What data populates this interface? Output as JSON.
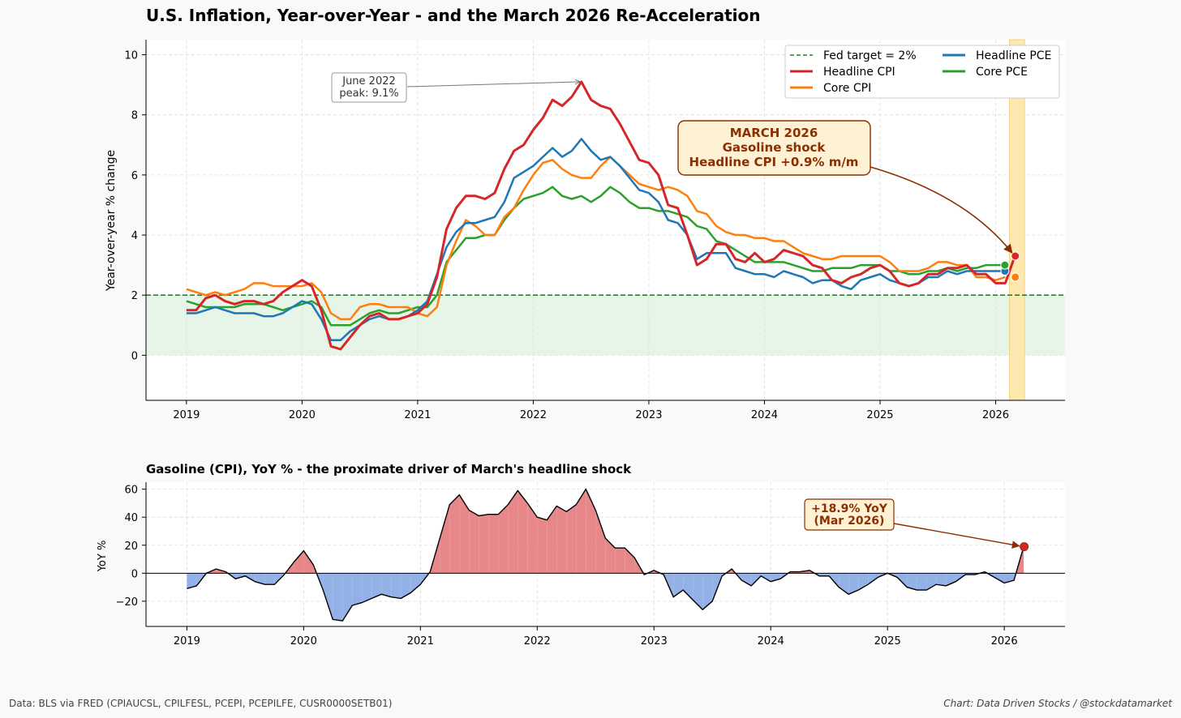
{
  "header": {
    "title": "U.S. Inflation, Year-over-Year - and the March 2026 Re-Acceleration"
  },
  "footer": {
    "source": "Data: BLS via FRED (CPIAUCSL, CPILFESL, PCEPI, PCEPILFE, CUSR0000SETB01)",
    "credit": "Chart: Data Driven Stocks / @stockdatamarket"
  },
  "colors": {
    "headline_cpi": "#d62728",
    "core_cpi": "#ff7f0e",
    "headline_pce": "#1f77b4",
    "core_pce": "#2ca02c",
    "fed_target": "#2e7d32",
    "target_band": "#e6f5e8",
    "highlight_band": "#fde9b0",
    "annotation_text": "#8b2e00",
    "annotation_box": "#fff2d4",
    "gas_positive": "#e8878a",
    "gas_negative": "#93b1e6"
  },
  "chart_data": [
    {
      "type": "line",
      "title": "",
      "ylabel": "Year-over-year % change",
      "xlabel": "",
      "xlim": [
        2018.65,
        2026.6
      ],
      "ylim": [
        -1.5,
        10.5
      ],
      "x_ticks": [
        2019,
        2020,
        2021,
        2022,
        2023,
        2024,
        2025,
        2026
      ],
      "y_ticks": [
        0,
        2,
        4,
        6,
        8,
        10
      ],
      "grid": true,
      "target_line": {
        "value": 2,
        "label": "Fed target = 2%"
      },
      "target_band": [
        0,
        2
      ],
      "highlight_span": [
        2026.12,
        2026.25
      ],
      "legend": {
        "position": "top-right",
        "entries": [
          "Fed target = 2%",
          "Headline CPI",
          "Core CPI",
          "Headline PCE",
          "Core PCE"
        ]
      },
      "series": [
        {
          "name": "Headline CPI",
          "key": "headline_cpi",
          "start": 2019.0,
          "values": [
            1.5,
            1.5,
            1.9,
            2.0,
            1.8,
            1.7,
            1.8,
            1.8,
            1.7,
            1.8,
            2.1,
            2.3,
            2.5,
            2.3,
            1.5,
            0.3,
            0.2,
            0.6,
            1.0,
            1.3,
            1.4,
            1.2,
            1.2,
            1.3,
            1.4,
            1.7,
            2.6,
            4.2,
            4.9,
            5.3,
            5.3,
            5.2,
            5.4,
            6.2,
            6.8,
            7.0,
            7.5,
            7.9,
            8.5,
            8.3,
            8.6,
            9.1,
            8.5,
            8.3,
            8.2,
            7.7,
            7.1,
            6.5,
            6.4,
            6.0,
            5.0,
            4.9,
            4.0,
            3.0,
            3.2,
            3.7,
            3.7,
            3.2,
            3.1,
            3.4,
            3.1,
            3.2,
            3.5,
            3.4,
            3.3,
            3.0,
            2.9,
            2.5,
            2.4,
            2.6,
            2.7,
            2.9,
            3.0,
            2.8,
            2.4,
            2.3,
            2.4,
            2.7,
            2.7,
            2.9,
            2.9,
            3.0,
            2.7,
            2.7,
            2.4,
            2.4,
            3.3
          ]
        },
        {
          "name": "Core CPI",
          "key": "core_cpi",
          "start": 2019.0,
          "values": [
            2.2,
            2.1,
            2.0,
            2.1,
            2.0,
            2.1,
            2.2,
            2.4,
            2.4,
            2.3,
            2.3,
            2.3,
            2.3,
            2.4,
            2.1,
            1.4,
            1.2,
            1.2,
            1.6,
            1.7,
            1.7,
            1.6,
            1.6,
            1.6,
            1.4,
            1.3,
            1.6,
            3.0,
            3.8,
            4.5,
            4.3,
            4.0,
            4.0,
            4.6,
            4.9,
            5.5,
            6.0,
            6.4,
            6.5,
            6.2,
            6.0,
            5.9,
            5.9,
            6.3,
            6.6,
            6.3,
            6.0,
            5.7,
            5.6,
            5.5,
            5.6,
            5.5,
            5.3,
            4.8,
            4.7,
            4.3,
            4.1,
            4.0,
            4.0,
            3.9,
            3.9,
            3.8,
            3.8,
            3.6,
            3.4,
            3.3,
            3.2,
            3.2,
            3.3,
            3.3,
            3.3,
            3.3,
            3.3,
            3.1,
            2.8,
            2.8,
            2.8,
            2.9,
            3.1,
            3.1,
            3.0,
            3.0,
            2.6,
            2.6,
            2.5,
            2.6
          ]
        },
        {
          "name": "Headline PCE",
          "key": "headline_pce",
          "start": 2019.0,
          "values": [
            1.4,
            1.4,
            1.5,
            1.6,
            1.5,
            1.4,
            1.4,
            1.4,
            1.3,
            1.3,
            1.4,
            1.6,
            1.8,
            1.7,
            1.2,
            0.5,
            0.5,
            0.8,
            1.0,
            1.2,
            1.3,
            1.2,
            1.2,
            1.3,
            1.5,
            1.8,
            2.7,
            3.6,
            4.1,
            4.4,
            4.4,
            4.5,
            4.6,
            5.1,
            5.9,
            6.1,
            6.3,
            6.6,
            6.9,
            6.6,
            6.8,
            7.2,
            6.8,
            6.5,
            6.6,
            6.3,
            5.9,
            5.5,
            5.4,
            5.1,
            4.5,
            4.4,
            4.0,
            3.2,
            3.4,
            3.4,
            3.4,
            2.9,
            2.8,
            2.7,
            2.7,
            2.6,
            2.8,
            2.7,
            2.6,
            2.4,
            2.5,
            2.5,
            2.3,
            2.2,
            2.5,
            2.6,
            2.7,
            2.5,
            2.4,
            2.3,
            2.4,
            2.6,
            2.6,
            2.8,
            2.7,
            2.8,
            2.8,
            2.8,
            2.8,
            2.8
          ]
        },
        {
          "name": "Core PCE",
          "key": "core_pce",
          "start": 2019.0,
          "values": [
            1.8,
            1.7,
            1.6,
            1.6,
            1.6,
            1.6,
            1.7,
            1.7,
            1.7,
            1.6,
            1.5,
            1.6,
            1.7,
            1.8,
            1.6,
            1.0,
            1.0,
            1.0,
            1.2,
            1.4,
            1.5,
            1.4,
            1.4,
            1.5,
            1.6,
            1.6,
            2.0,
            3.1,
            3.5,
            3.9,
            3.9,
            4.0,
            4.0,
            4.5,
            4.9,
            5.2,
            5.3,
            5.4,
            5.6,
            5.3,
            5.2,
            5.3,
            5.1,
            5.3,
            5.6,
            5.4,
            5.1,
            4.9,
            4.9,
            4.8,
            4.8,
            4.7,
            4.6,
            4.3,
            4.2,
            3.8,
            3.7,
            3.5,
            3.3,
            3.1,
            3.1,
            3.1,
            3.1,
            3.0,
            2.9,
            2.8,
            2.8,
            2.9,
            2.9,
            2.9,
            3.0,
            3.0,
            3.0,
            2.8,
            2.8,
            2.7,
            2.7,
            2.8,
            2.8,
            2.9,
            2.8,
            2.9,
            2.9,
            3.0,
            3.0,
            3.0
          ]
        }
      ],
      "end_markers": [
        {
          "series": "Headline CPI",
          "x": 2026.17,
          "y": 3.3
        },
        {
          "series": "Core CPI",
          "x": 2026.17,
          "y": 2.6
        },
        {
          "series": "Headline PCE",
          "x": 2026.08,
          "y": 2.8
        },
        {
          "series": "Core PCE",
          "x": 2026.08,
          "y": 3.0
        }
      ],
      "annotations": {
        "peak": {
          "text": [
            "June 2022",
            "peak: 9.1%"
          ],
          "x": 2022.42,
          "y": 9.1
        },
        "shock": {
          "text": [
            "MARCH 2026",
            "Gasoline shock",
            "Headline CPI +0.9% m/m"
          ],
          "x": 2026.17,
          "y": 3.3
        }
      }
    },
    {
      "type": "area",
      "title": "Gasoline (CPI), YoY % - the proximate driver of March's headline shock",
      "ylabel": "YoY %",
      "xlabel": "",
      "xlim": [
        2018.65,
        2026.52
      ],
      "ylim": [
        -38,
        65
      ],
      "x_ticks": [
        2019,
        2020,
        2021,
        2022,
        2023,
        2024,
        2025,
        2026
      ],
      "y_ticks": [
        -20,
        0,
        20,
        40,
        60
      ],
      "grid": true,
      "series": [
        {
          "name": "Gasoline CPI YoY",
          "start": 2019.0,
          "values": [
            -11,
            -9,
            0,
            3,
            1,
            -4,
            -2,
            -6,
            -8,
            -8,
            -1,
            8,
            16,
            6,
            -12,
            -33,
            -34,
            -23,
            -21,
            -18,
            -15,
            -17,
            -18,
            -14,
            -8,
            1,
            25,
            49,
            56,
            45,
            41,
            42,
            42,
            49,
            59,
            50,
            40,
            38,
            48,
            44,
            49,
            60,
            45,
            25,
            18,
            18,
            11,
            -1,
            2,
            -1,
            -17,
            -12,
            -19,
            -26,
            -20,
            -2,
            3,
            -5,
            -9,
            -2,
            -6,
            -4,
            1,
            1,
            2,
            -2,
            -2,
            -10,
            -15,
            -12,
            -8,
            -3,
            0,
            -3,
            -10,
            -12,
            -12,
            -8,
            -9,
            -6,
            -1,
            -1,
            1,
            -3,
            -7,
            -5,
            19
          ]
        }
      ],
      "end_marker": {
        "x": 2026.17,
        "y": 18.9
      },
      "annotation": {
        "text": [
          "+18.9% YoY",
          "(Mar 2026)"
        ],
        "x": 2026.17,
        "y": 18.9
      }
    }
  ]
}
